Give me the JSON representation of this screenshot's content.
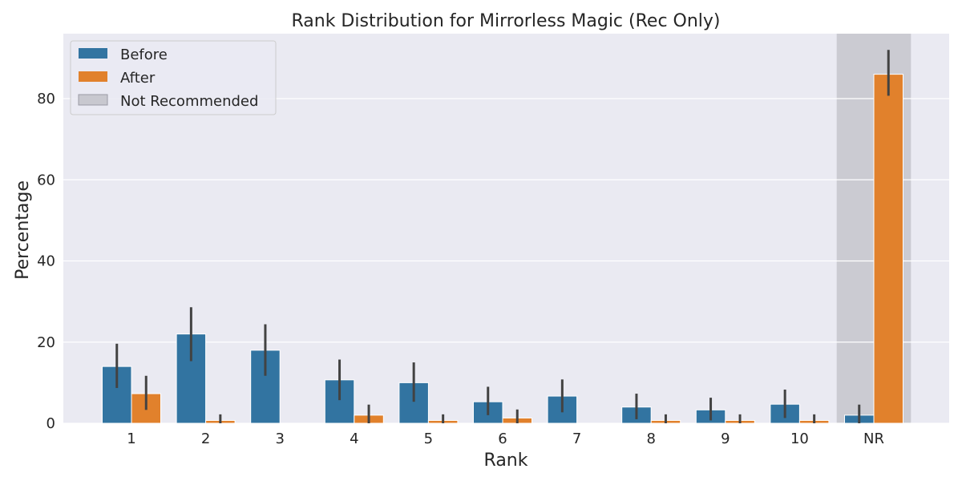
{
  "chart_data": {
    "type": "bar",
    "title": "Rank Distribution for Mirrorless Magic (Rec Only)",
    "xlabel": "Rank",
    "ylabel": "Percentage",
    "ylim": [
      0,
      96
    ],
    "yticks": [
      0,
      20,
      40,
      60,
      80
    ],
    "categories": [
      "1",
      "2",
      "3",
      "4",
      "5",
      "6",
      "7",
      "8",
      "9",
      "10",
      "NR"
    ],
    "series": [
      {
        "name": "Before",
        "color": "#3274a1",
        "values": [
          14.0,
          22.0,
          18.0,
          10.7,
          10.0,
          5.3,
          6.7,
          4.0,
          3.3,
          4.7,
          2.0
        ],
        "ci_low": [
          8.7,
          15.3,
          11.7,
          5.7,
          5.3,
          2.0,
          2.7,
          1.0,
          0.7,
          1.3,
          0.0
        ],
        "ci_high": [
          19.6,
          28.6,
          24.4,
          15.7,
          15.0,
          9.0,
          10.8,
          7.3,
          6.3,
          8.3,
          4.6
        ]
      },
      {
        "name": "After",
        "color": "#e1812c",
        "values": [
          7.3,
          0.7,
          0.0,
          2.0,
          0.7,
          1.3,
          0.0,
          0.7,
          0.7,
          0.7,
          86.0
        ],
        "ci_low": [
          3.3,
          0.0,
          0.0,
          0.0,
          0.0,
          0.0,
          0.0,
          0.0,
          0.0,
          0.0,
          80.7
        ],
        "ci_high": [
          11.7,
          2.2,
          0.0,
          4.6,
          2.2,
          3.4,
          0.0,
          2.2,
          2.2,
          2.2,
          92.0
        ]
      }
    ],
    "highlight": {
      "category": "NR",
      "label": "Not Recommended",
      "color": "#b0b0b8"
    },
    "legend": {
      "placement": "top-left",
      "entries": [
        "Before",
        "After",
        "Not Recommended"
      ]
    },
    "grid": true,
    "background": "#eaeaf2"
  }
}
